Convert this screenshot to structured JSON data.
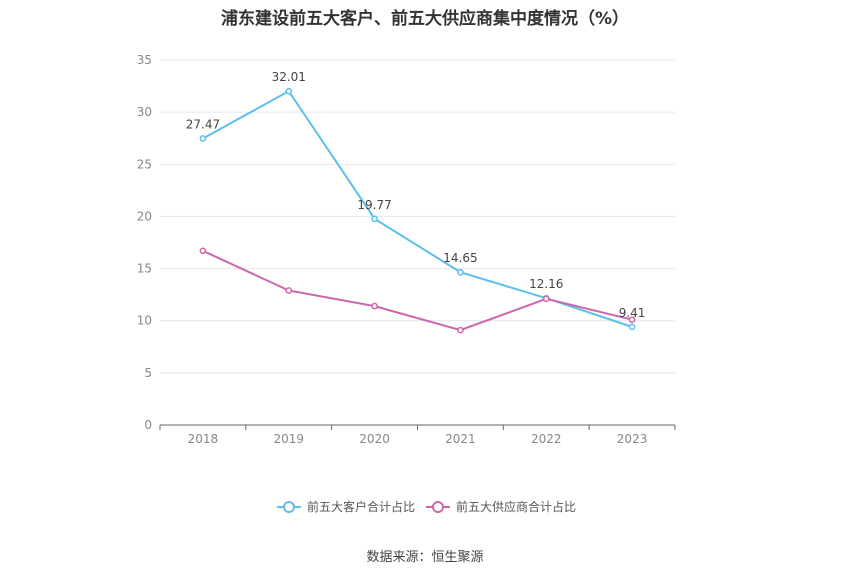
{
  "title": "浦东建设前五大客户、前五大供应商集中度情况（%）",
  "source": "数据来源：恒生聚源",
  "chart_data": {
    "type": "line",
    "title": "浦东建设前五大客户、前五大供应商集中度情况（%）",
    "x": [
      "2018",
      "2019",
      "2020",
      "2021",
      "2022",
      "2023"
    ],
    "ylim": [
      0,
      35
    ],
    "yticks": [
      0,
      5,
      10,
      15,
      20,
      25,
      30,
      35
    ],
    "grid": true,
    "legend_position": "bottom-center",
    "series": [
      {
        "name": "前五大客户合计占比",
        "color": "#5bc0eb",
        "values": [
          27.47,
          32.01,
          19.77,
          14.65,
          12.16,
          9.41
        ],
        "labels": [
          "27.47",
          "32.01",
          "19.77",
          "14.65",
          "12.16",
          "9.41"
        ]
      },
      {
        "name": "前五大供应商合计占比",
        "color": "#cc66aa",
        "values": [
          16.7,
          12.9,
          11.4,
          9.1,
          12.1,
          10.1
        ]
      }
    ]
  }
}
